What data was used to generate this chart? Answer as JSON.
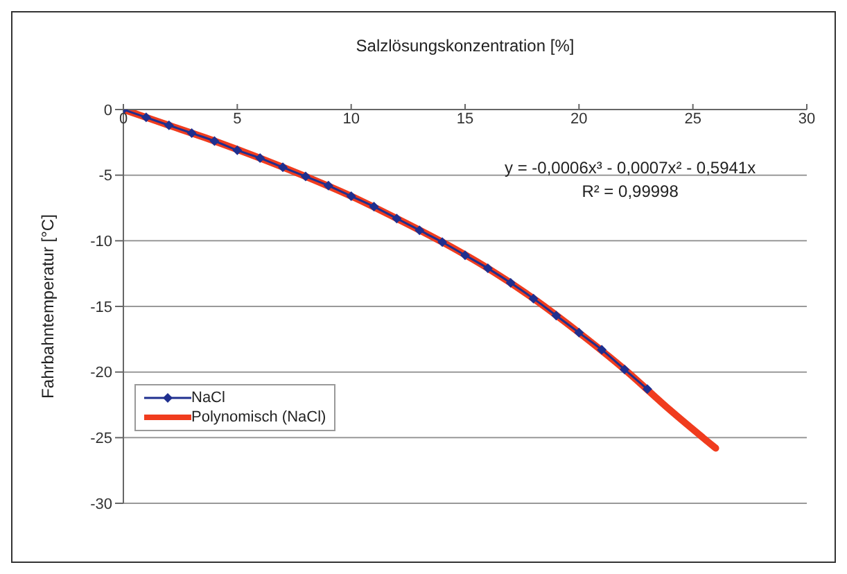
{
  "chart_data": {
    "type": "line",
    "xlabel": "Salzlösungskonzentration [%]",
    "ylabel": "Fahrbahntemperatur [°C]",
    "xlim": [
      0,
      30
    ],
    "xticks": [
      0,
      5,
      10,
      15,
      20,
      25,
      30
    ],
    "ylim": [
      -30,
      0
    ],
    "yticks": [
      -30,
      -25,
      -20,
      -15,
      -10,
      -5,
      0
    ],
    "grid": "y",
    "legend": "bottom left",
    "annotations": [
      "y = -0,0006x³ - 0,0007x² - 0,5941x",
      "R² = 0,99998"
    ],
    "series": [
      {
        "name": "NaCl",
        "color": "#1f2f8f",
        "marker": "diamond",
        "x": [
          0,
          1,
          2,
          3,
          4,
          5,
          6,
          7,
          8,
          9,
          10,
          11,
          12,
          13,
          14,
          15,
          16,
          17,
          18,
          19,
          20,
          21,
          22,
          23
        ],
        "values": [
          0,
          -0.6,
          -1.2,
          -1.8,
          -2.4,
          -3.1,
          -3.7,
          -4.4,
          -5.1,
          -5.8,
          -6.6,
          -7.4,
          -8.3,
          -9.2,
          -10.1,
          -11.1,
          -12.1,
          -13.2,
          -14.4,
          -15.7,
          -17.0,
          -18.3,
          -19.8,
          -21.3
        ]
      },
      {
        "name": "Polynomisch (NaCl)",
        "color": "#f03c1e",
        "marker": "none",
        "x": [
          0,
          2,
          4,
          6,
          8,
          10,
          12,
          14,
          16,
          18,
          20,
          22,
          24,
          26
        ],
        "values": [
          0,
          -1.2,
          -2.4,
          -3.7,
          -5.1,
          -6.6,
          -8.3,
          -10.1,
          -12.1,
          -14.4,
          -17.0,
          -19.8,
          -22.9,
          -25.8
        ]
      }
    ]
  }
}
